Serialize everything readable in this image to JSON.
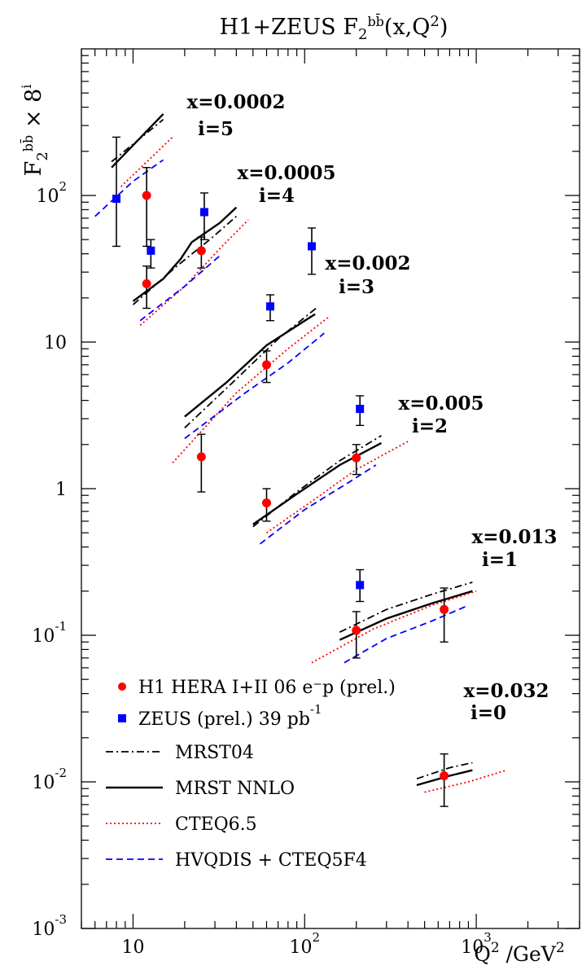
{
  "chart_data": {
    "type": "scatter",
    "title": "H1+ZEUS F₂ᵇᵇ̄(x,Q²)",
    "ylabel": "F₂ᵇᵇ̄ × 8ⁱ",
    "xlabel": "Q² /GeV²",
    "xscale": "log",
    "yscale": "log",
    "xlim": [
      5,
      4000
    ],
    "ylim": [
      0.001,
      1000
    ],
    "x_ticks": [
      {
        "value": 10,
        "label": "10"
      },
      {
        "value": 100,
        "label": "10²"
      },
      {
        "value": 1000,
        "label": "10³"
      }
    ],
    "y_ticks": [
      {
        "value": 0.001,
        "label": "10⁻³"
      },
      {
        "value": 0.01,
        "label": "10⁻²"
      },
      {
        "value": 0.1,
        "label": "10⁻¹"
      },
      {
        "value": 1,
        "label": "1"
      },
      {
        "value": 10,
        "label": "10"
      },
      {
        "value": 100,
        "label": "10²"
      }
    ],
    "grid": false,
    "legend_position": "bottom-left",
    "annotations": [
      {
        "x_text": "x=0.0002",
        "i_text": "i=5"
      },
      {
        "x_text": "x=0.0005",
        "i_text": "i=4"
      },
      {
        "x_text": "x=0.002",
        "i_text": "i=3"
      },
      {
        "x_text": "x=0.005",
        "i_text": "i=2"
      },
      {
        "x_text": "x=0.013",
        "i_text": "i=1"
      },
      {
        "x_text": "x=0.032",
        "i_text": "i=0"
      }
    ],
    "series": [
      {
        "name": "H1 HERA I+II 06 e⁻p  (prel.)",
        "kind": "points",
        "marker": "circle",
        "color": "#ff0000",
        "points": [
          {
            "x": 12,
            "y": 100,
            "ylo": 45,
            "yhi": 155
          },
          {
            "x": 12,
            "y": 25,
            "ylo": 17,
            "yhi": 33
          },
          {
            "x": 25,
            "y": 42,
            "ylo": 32,
            "yhi": 52
          },
          {
            "x": 60,
            "y": 7,
            "ylo": 5.3,
            "yhi": 8.7
          },
          {
            "x": 25,
            "y": 1.65,
            "ylo": 0.95,
            "yhi": 2.35
          },
          {
            "x": 60,
            "y": 0.8,
            "ylo": 0.6,
            "yhi": 1.0
          },
          {
            "x": 200,
            "y": 1.62,
            "ylo": 1.25,
            "yhi": 2.0
          },
          {
            "x": 200,
            "y": 0.108,
            "ylo": 0.07,
            "yhi": 0.145
          },
          {
            "x": 650,
            "y": 0.15,
            "ylo": 0.09,
            "yhi": 0.21
          },
          {
            "x": 650,
            "y": 0.011,
            "ylo": 0.0068,
            "yhi": 0.0155
          }
        ]
      },
      {
        "name": "ZEUS (prel.) 39 pb⁻¹",
        "kind": "points",
        "marker": "square",
        "color": "#0000ff",
        "points": [
          {
            "x": 8,
            "y": 95,
            "ylo": 45,
            "yhi": 250
          },
          {
            "x": 12.7,
            "y": 42,
            "ylo": 32,
            "yhi": 50
          },
          {
            "x": 26,
            "y": 77,
            "ylo": 50,
            "yhi": 104
          },
          {
            "x": 63,
            "y": 17.5,
            "ylo": 14,
            "yhi": 21
          },
          {
            "x": 110,
            "y": 45,
            "ylo": 29,
            "yhi": 60
          },
          {
            "x": 210,
            "y": 3.5,
            "ylo": 2.7,
            "yhi": 4.3
          },
          {
            "x": 210,
            "y": 0.22,
            "ylo": 0.17,
            "yhi": 0.28
          }
        ]
      },
      {
        "name": "MRST04",
        "kind": "line",
        "style": "dashdot",
        "color": "#000000",
        "curves": [
          [
            [
              7.5,
              170
            ],
            [
              15,
              330
            ]
          ],
          [
            [
              10,
              18
            ],
            [
              18,
              33
            ],
            [
              28,
              50
            ],
            [
              40,
              72
            ]
          ],
          [
            [
              20,
              2.6
            ],
            [
              40,
              5.6
            ],
            [
              70,
              10.5
            ],
            [
              120,
              17.5
            ]
          ],
          [
            [
              50,
              0.55
            ],
            [
              90,
              0.95
            ],
            [
              160,
              1.55
            ],
            [
              280,
              2.3
            ]
          ],
          [
            [
              160,
              0.105
            ],
            [
              300,
              0.15
            ],
            [
              550,
              0.19
            ],
            [
              950,
              0.23
            ]
          ],
          [
            [
              450,
              0.0105
            ],
            [
              700,
              0.0125
            ],
            [
              950,
              0.0135
            ]
          ]
        ]
      },
      {
        "name": "MRST NNLO",
        "kind": "line",
        "style": "solid",
        "color": "#000000",
        "curves": [
          [
            [
              7.5,
              155
            ],
            [
              15,
              360
            ]
          ],
          [
            [
              10,
              19
            ],
            [
              15,
              27
            ],
            [
              19,
              37
            ],
            [
              22,
              48
            ],
            [
              32,
              65
            ],
            [
              40,
              83
            ]
          ],
          [
            [
              20,
              3.1
            ],
            [
              35,
              5.3
            ],
            [
              60,
              9.5
            ],
            [
              115,
              15.5
            ]
          ],
          [
            [
              50,
              0.57
            ],
            [
              90,
              0.92
            ],
            [
              160,
              1.45
            ],
            [
              280,
              2.05
            ]
          ],
          [
            [
              160,
              0.093
            ],
            [
              300,
              0.13
            ],
            [
              550,
              0.165
            ],
            [
              950,
              0.2
            ]
          ],
          [
            [
              450,
              0.0095
            ],
            [
              700,
              0.011
            ],
            [
              950,
              0.012
            ]
          ]
        ]
      },
      {
        "name": "CTEQ6.5",
        "kind": "line",
        "style": "dotted",
        "color": "#ff0000",
        "curves": [
          [
            [
              8.5,
              115
            ],
            [
              17,
              250
            ]
          ],
          [
            [
              11,
              13
            ],
            [
              20,
              24
            ],
            [
              33,
              45
            ],
            [
              47,
              68
            ]
          ],
          [
            [
              17,
              1.5
            ],
            [
              40,
              4.5
            ],
            [
              80,
              9
            ],
            [
              140,
              15
            ]
          ],
          [
            [
              60,
              0.5
            ],
            [
              110,
              0.82
            ],
            [
              200,
              1.35
            ],
            [
              400,
              2.1
            ]
          ],
          [
            [
              110,
              0.065
            ],
            [
              250,
              0.11
            ],
            [
              550,
              0.16
            ],
            [
              1000,
              0.2
            ]
          ],
          [
            [
              500,
              0.0085
            ],
            [
              900,
              0.01
            ],
            [
              1500,
              0.012
            ]
          ]
        ]
      },
      {
        "name": "HVQDIS + CTEQ5F4",
        "kind": "line",
        "style": "dashed",
        "color": "#0000ff",
        "curves": [
          [
            [
              6,
              72
            ],
            [
              10,
              125
            ],
            [
              15,
              175
            ]
          ],
          [
            [
              11,
              14
            ],
            [
              20,
              24
            ],
            [
              33,
              40
            ]
          ],
          [
            [
              20,
              2.2
            ],
            [
              45,
              4.5
            ],
            [
              80,
              7.2
            ],
            [
              130,
              11.5
            ]
          ],
          [
            [
              55,
              0.42
            ],
            [
              100,
              0.72
            ],
            [
              180,
              1.1
            ],
            [
              260,
              1.45
            ]
          ],
          [
            [
              170,
              0.065
            ],
            [
              300,
              0.095
            ],
            [
              550,
              0.125
            ],
            [
              900,
              0.16
            ]
          ]
        ]
      }
    ]
  }
}
